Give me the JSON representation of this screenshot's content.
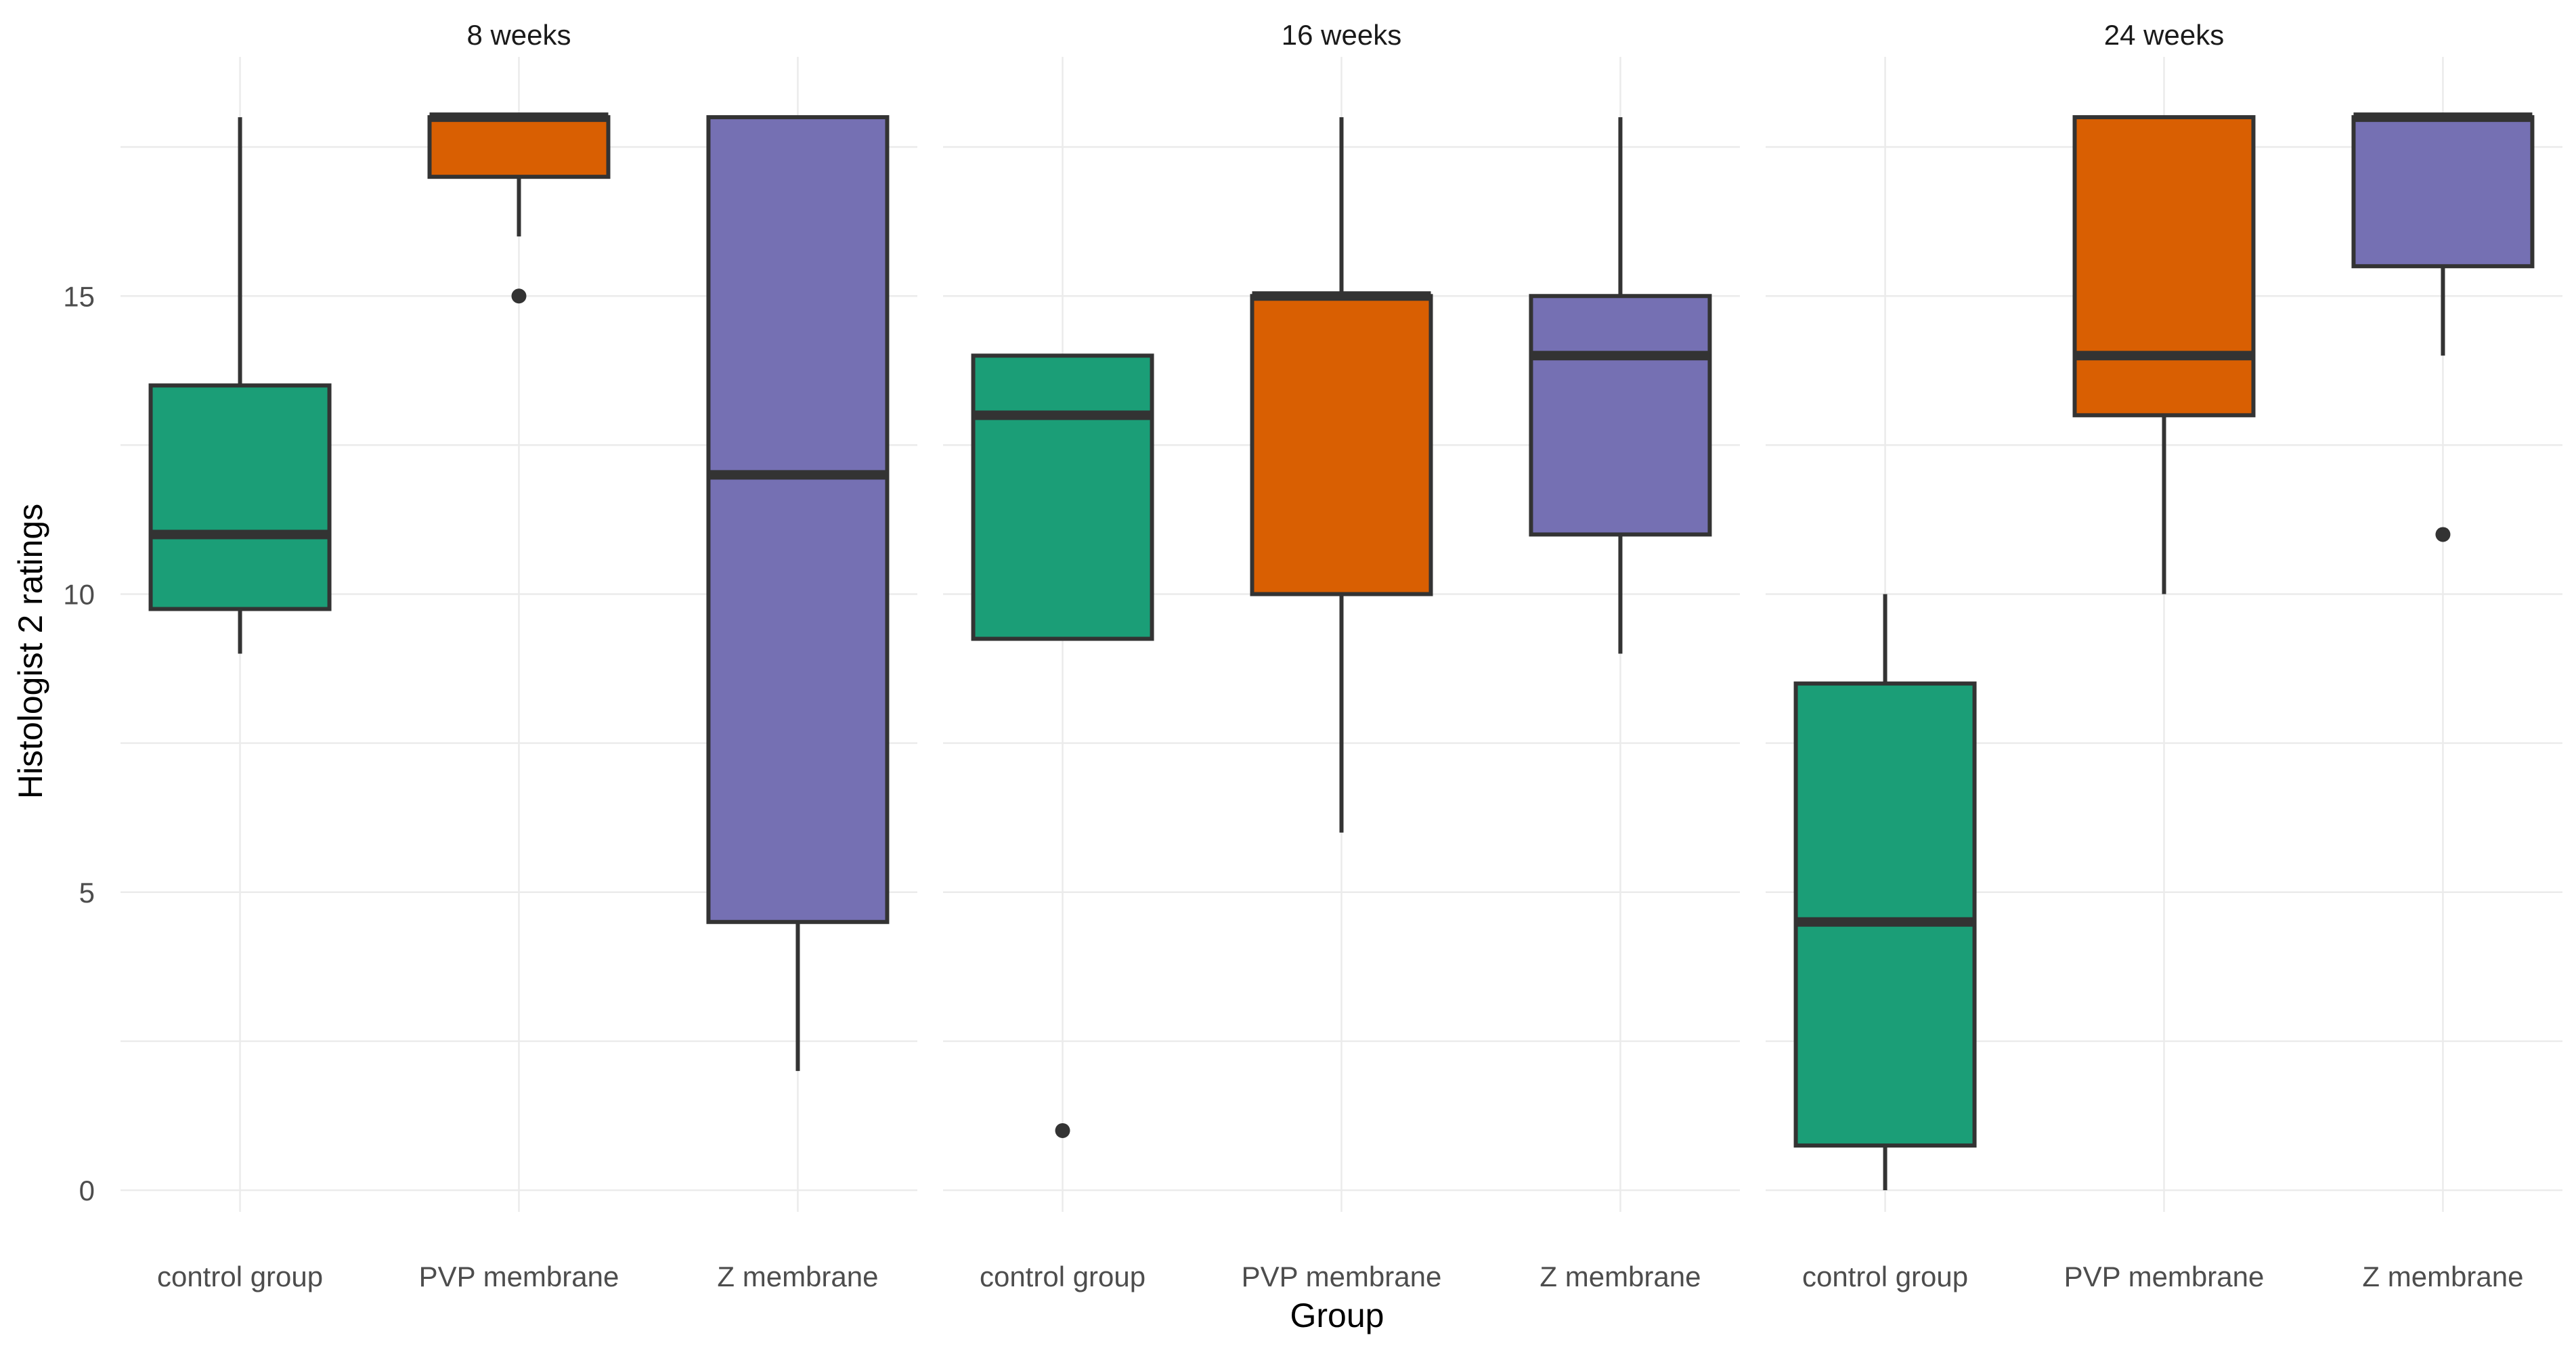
{
  "chart_data": {
    "type": "boxplot",
    "xlabel": "Group",
    "ylabel": "Histologist 2 ratings",
    "ylim": [
      0,
      19
    ],
    "yticks": [
      0,
      5,
      10,
      15
    ],
    "categories": [
      "control group",
      "PVP membrane",
      "Z membrane"
    ],
    "colors": {
      "control group": "#1b9e77",
      "PVP membrane": "#d95f02",
      "Z membrane": "#7570b3"
    },
    "panels": [
      {
        "title": "8 weeks",
        "boxes": [
          {
            "group": "control group",
            "min": 9,
            "q1": 9.75,
            "median": 11,
            "q3": 13.5,
            "max": 18,
            "outliers": []
          },
          {
            "group": "PVP membrane",
            "min": 16,
            "q1": 17,
            "median": 18,
            "q3": 18,
            "max": 18,
            "outliers": [
              15
            ]
          },
          {
            "group": "Z membrane",
            "min": 2,
            "q1": 4.5,
            "median": 12,
            "q3": 18,
            "max": 18,
            "outliers": []
          }
        ]
      },
      {
        "title": "16 weeks",
        "boxes": [
          {
            "group": "control group",
            "min": 9.25,
            "q1": 9.25,
            "median": 13,
            "q3": 14,
            "max": 14,
            "outliers": [
              1
            ]
          },
          {
            "group": "PVP membrane",
            "min": 6,
            "q1": 10,
            "median": 15,
            "q3": 15,
            "max": 18,
            "outliers": []
          },
          {
            "group": "Z membrane",
            "min": 9,
            "q1": 11,
            "median": 14,
            "q3": 15,
            "max": 18,
            "outliers": []
          }
        ]
      },
      {
        "title": "24 weeks",
        "boxes": [
          {
            "group": "control group",
            "min": 0,
            "q1": 0.75,
            "median": 4.5,
            "q3": 8.5,
            "max": 10,
            "outliers": []
          },
          {
            "group": "PVP membrane",
            "min": 10,
            "q1": 13,
            "median": 14,
            "q3": 18,
            "max": 18,
            "outliers": []
          },
          {
            "group": "Z membrane",
            "min": 14,
            "q1": 15.5,
            "median": 18,
            "q3": 18,
            "max": 18,
            "outliers": [
              11
            ]
          }
        ]
      }
    ]
  }
}
